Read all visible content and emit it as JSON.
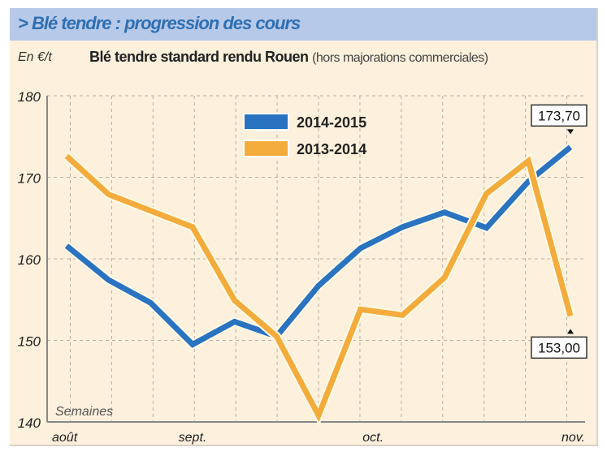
{
  "header": {
    "title": "> Blé tendre : progression des cours"
  },
  "unit": "En €/t",
  "subtitle": {
    "main": "Blé tendre standard rendu Rouen",
    "note": "(hors majorations commerciales)"
  },
  "chart_data": {
    "type": "line",
    "title": "Blé tendre standard rendu Rouen (hors majorations commerciales)",
    "ylabel": "En €/t",
    "xlabel": "Semaines",
    "ylim": [
      140,
      180
    ],
    "yticks": [
      "140",
      "150",
      "160",
      "170",
      "180"
    ],
    "grid": true,
    "legend_position": "top-center",
    "x": [
      0,
      1,
      2,
      3,
      4,
      5,
      6,
      7,
      8,
      9,
      10,
      11,
      12
    ],
    "month_labels": [
      {
        "label": "août",
        "week": 0
      },
      {
        "label": "sept.",
        "week": 3
      },
      {
        "label": "oct.",
        "week": 7.3
      },
      {
        "label": "nov.",
        "week": 12
      }
    ],
    "series": [
      {
        "name": "2014-2015",
        "color": "#2a73c0",
        "values": [
          161.6,
          157.4,
          154.6,
          149.5,
          152.3,
          150.5,
          156.7,
          161.3,
          163.9,
          165.7,
          163.8,
          169.5,
          173.7
        ]
      },
      {
        "name": "2013-2014",
        "color": "#f3ac3c",
        "values": [
          172.6,
          167.9,
          165.9,
          163.9,
          154.9,
          150.5,
          140.8,
          153.8,
          153.1,
          157.7,
          168.0,
          172.0,
          153.0
        ]
      }
    ],
    "annotations": [
      {
        "text": "173,70",
        "series": 0,
        "week": 12,
        "position": "above"
      },
      {
        "text": "153,00",
        "series": 1,
        "week": 12,
        "position": "below"
      }
    ]
  }
}
